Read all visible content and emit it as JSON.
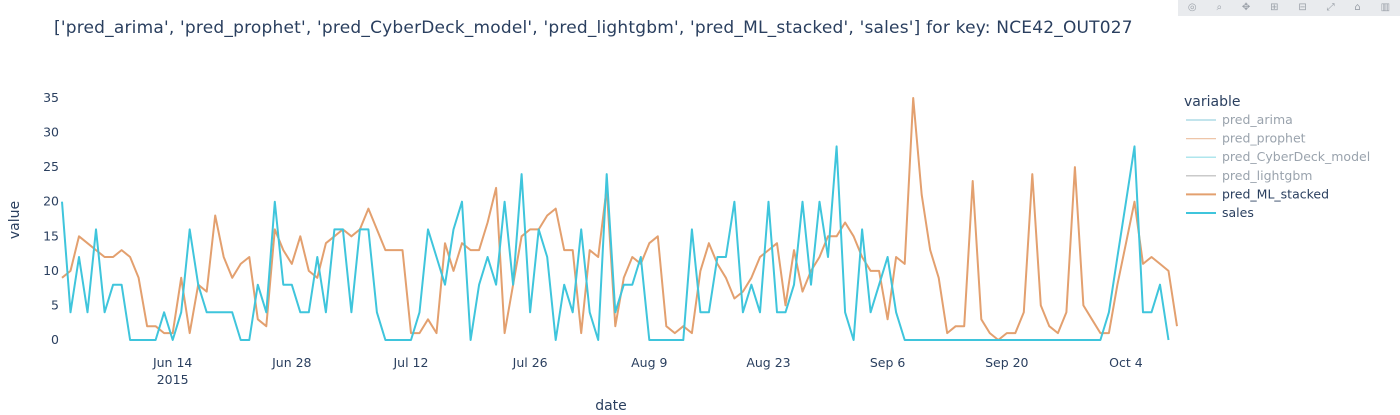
{
  "title": "['pred_arima', 'pred_prophet', 'pred_CyberDeck_model', 'pred_lightgbm', 'pred_ML_stacked', 'sales'] for key: NCE42_OUT027",
  "modebar": {
    "icons": [
      "camera-icon",
      "zoom-icon",
      "pan-icon",
      "zoom-in-icon",
      "zoom-out-icon",
      "autoscale-icon",
      "reset-axes-icon",
      "plotly-logo-icon"
    ],
    "glyphs": [
      "◎",
      "⌕",
      "✥",
      "⊞",
      "⊟",
      "⤢",
      "⌂",
      "▥"
    ]
  },
  "chart_data": {
    "type": "line",
    "title": "['pred_arima', 'pred_prophet', 'pred_CyberDeck_model', 'pred_lightgbm', 'pred_ML_stacked', 'sales'] for key: NCE42_OUT027",
    "xlabel": "date",
    "ylabel": "value",
    "x_range": [
      "2015-06-01",
      "2015-10-08"
    ],
    "ylim": [
      0,
      36
    ],
    "xticks": [
      {
        "date": "2015-06-14",
        "label": "Jun 14",
        "sublabel": "2015"
      },
      {
        "date": "2015-06-28",
        "label": "Jun 28"
      },
      {
        "date": "2015-07-12",
        "label": "Jul 12"
      },
      {
        "date": "2015-07-26",
        "label": "Jul 26"
      },
      {
        "date": "2015-08-09",
        "label": "Aug 9"
      },
      {
        "date": "2015-08-23",
        "label": "Aug 23"
      },
      {
        "date": "2015-09-06",
        "label": "Sep 6"
      },
      {
        "date": "2015-09-20",
        "label": "Sep 20"
      },
      {
        "date": "2015-10-04",
        "label": "Oct 4"
      }
    ],
    "yticks": [
      0,
      5,
      10,
      15,
      20,
      25,
      30,
      35
    ],
    "grid": false,
    "legend": {
      "title": "variable",
      "placement": "right"
    },
    "start_date": "2015-06-01",
    "series": [
      {
        "name": "pred_arima",
        "color": "#5fb7cc",
        "width": 1,
        "faded": true,
        "values": []
      },
      {
        "name": "pred_prophet",
        "color": "#e3a06f",
        "width": 1,
        "faded": true,
        "values": []
      },
      {
        "name": "pred_CyberDeck_model",
        "color": "#4fc8d8",
        "width": 1,
        "faded": true,
        "values": []
      },
      {
        "name": "pred_lightgbm",
        "color": "#8a8a8a",
        "width": 1,
        "faded": true,
        "values": []
      },
      {
        "name": "pred_ML_stacked",
        "color": "#e3a06f",
        "width": 2,
        "faded": false,
        "values": [
          9,
          10,
          15,
          14,
          13,
          12,
          12,
          13,
          12,
          9,
          2,
          2,
          1,
          1,
          9,
          1,
          8,
          7,
          18,
          12,
          9,
          11,
          12,
          3,
          2,
          16,
          13,
          11,
          15,
          10,
          9,
          14,
          15,
          16,
          15,
          16,
          19,
          16,
          13,
          13,
          13,
          1,
          1,
          3,
          1,
          14,
          10,
          14,
          13,
          13,
          17,
          22,
          1,
          8,
          15,
          16,
          16,
          18,
          19,
          13,
          13,
          1,
          13,
          12,
          22,
          2,
          9,
          12,
          11,
          14,
          15,
          2,
          1,
          2,
          1,
          10,
          14,
          11,
          9,
          6,
          7,
          9,
          12,
          13,
          14,
          5,
          13,
          7,
          10,
          12,
          15,
          15,
          17,
          15,
          12,
          10,
          10,
          3,
          12,
          11,
          35,
          21,
          13,
          9,
          1,
          2,
          2,
          23,
          3,
          1,
          0,
          1,
          1,
          4,
          24,
          5,
          2,
          1,
          4,
          25,
          5,
          3,
          1,
          1,
          8,
          14,
          20,
          11,
          12,
          11,
          10,
          2
        ]
      },
      {
        "name": "sales",
        "color": "#3fc5dc",
        "width": 2,
        "faded": false,
        "values": [
          20,
          4,
          12,
          4,
          16,
          4,
          8,
          8,
          0,
          0,
          0,
          0,
          4,
          0,
          4,
          16,
          8,
          4,
          4,
          4,
          4,
          0,
          0,
          8,
          4,
          20,
          8,
          8,
          4,
          4,
          12,
          4,
          16,
          16,
          4,
          16,
          16,
          4,
          0,
          0,
          0,
          0,
          4,
          16,
          12,
          8,
          16,
          20,
          0,
          8,
          12,
          8,
          20,
          8,
          24,
          4,
          16,
          12,
          0,
          8,
          4,
          16,
          4,
          0,
          24,
          4,
          8,
          8,
          12,
          0,
          0,
          0,
          0,
          0,
          16,
          4,
          4,
          12,
          12,
          20,
          4,
          8,
          4,
          20,
          4,
          4,
          8,
          20,
          8,
          20,
          12,
          28,
          4,
          0,
          16,
          4,
          8,
          12,
          4,
          0,
          0,
          0,
          0,
          0,
          0,
          0,
          0,
          0,
          0,
          0,
          0,
          0,
          0,
          0,
          0,
          0,
          0,
          0,
          0,
          0,
          0,
          0,
          0,
          4,
          12,
          20,
          28,
          4,
          4,
          8,
          0
        ]
      }
    ]
  }
}
